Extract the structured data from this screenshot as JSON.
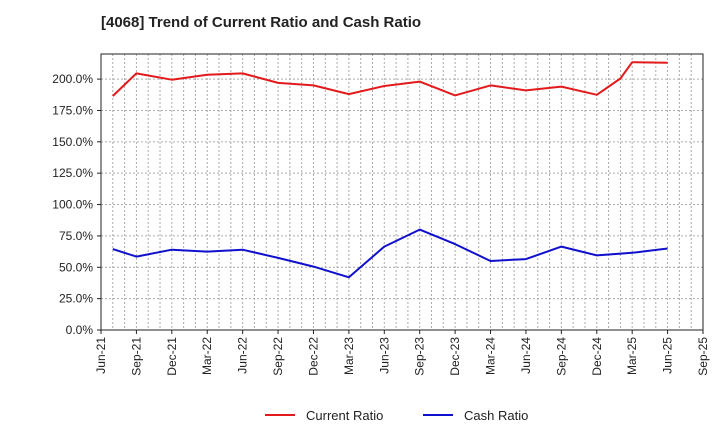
{
  "chart_data": {
    "type": "line",
    "title": "[4068]  Trend of Current Ratio and Cash Ratio",
    "xlabel": "",
    "ylabel": "",
    "ylim": [
      0,
      220
    ],
    "yticks": [
      0,
      25,
      50,
      75,
      100,
      125,
      150,
      175,
      200
    ],
    "ytick_labels": [
      "0.0%",
      "25.0%",
      "50.0%",
      "75.0%",
      "100.0%",
      "125.0%",
      "150.0%",
      "175.0%",
      "200.0%"
    ],
    "x_tick_labels": [
      "Jun-21",
      "Sep-21",
      "Dec-21",
      "Mar-22",
      "Jun-22",
      "Sep-22",
      "Dec-22",
      "Mar-23",
      "Jun-23",
      "Sep-23",
      "Dec-23",
      "Mar-24",
      "Jun-24",
      "Sep-24",
      "Dec-24",
      "Mar-25",
      "Jun-25",
      "Sep-25"
    ],
    "x_range_months": [
      0,
      51
    ],
    "grid": true,
    "legend_position": "bottom-center",
    "series": [
      {
        "name": "Current Ratio",
        "color": "#e31a1c",
        "x": [
          1,
          3,
          6,
          9,
          12,
          15,
          18,
          21,
          24,
          27,
          30,
          33,
          36,
          39,
          42,
          44,
          45,
          48
        ],
        "values": [
          186.5,
          204.5,
          199.5,
          203.5,
          204.5,
          197.0,
          195.0,
          188.0,
          194.5,
          198.0,
          187.0,
          195.0,
          191.0,
          194.0,
          187.5,
          200.5,
          213.5,
          213.0
        ]
      },
      {
        "name": "Cash Ratio",
        "color": "#1010cc",
        "x": [
          1,
          3,
          6,
          9,
          12,
          15,
          18,
          21,
          24,
          27,
          30,
          33,
          36,
          39,
          42,
          45,
          48
        ],
        "values": [
          64.5,
          58.5,
          64.0,
          62.5,
          64.0,
          57.5,
          50.5,
          42.0,
          66.5,
          80.0,
          68.5,
          55.0,
          56.5,
          66.5,
          59.5,
          61.5,
          65.0
        ]
      }
    ]
  }
}
